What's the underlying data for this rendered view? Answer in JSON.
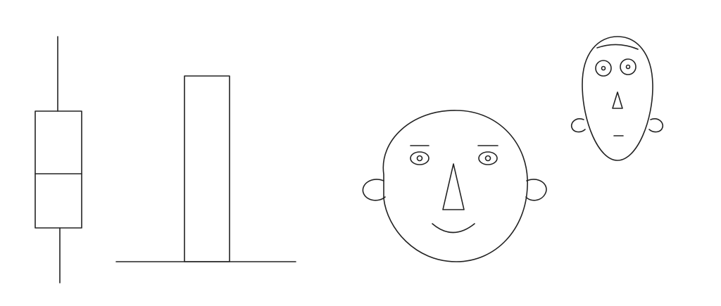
{
  "figure": {
    "description_items": [
      {
        "kind": "boxplot"
      },
      {
        "kind": "bar"
      },
      {
        "kind": "chernoff-face",
        "expression": "smiling"
      },
      {
        "kind": "chernoff-face",
        "expression": "worried"
      }
    ],
    "stroke_color": "#222222",
    "background_color": "#ffffff"
  }
}
